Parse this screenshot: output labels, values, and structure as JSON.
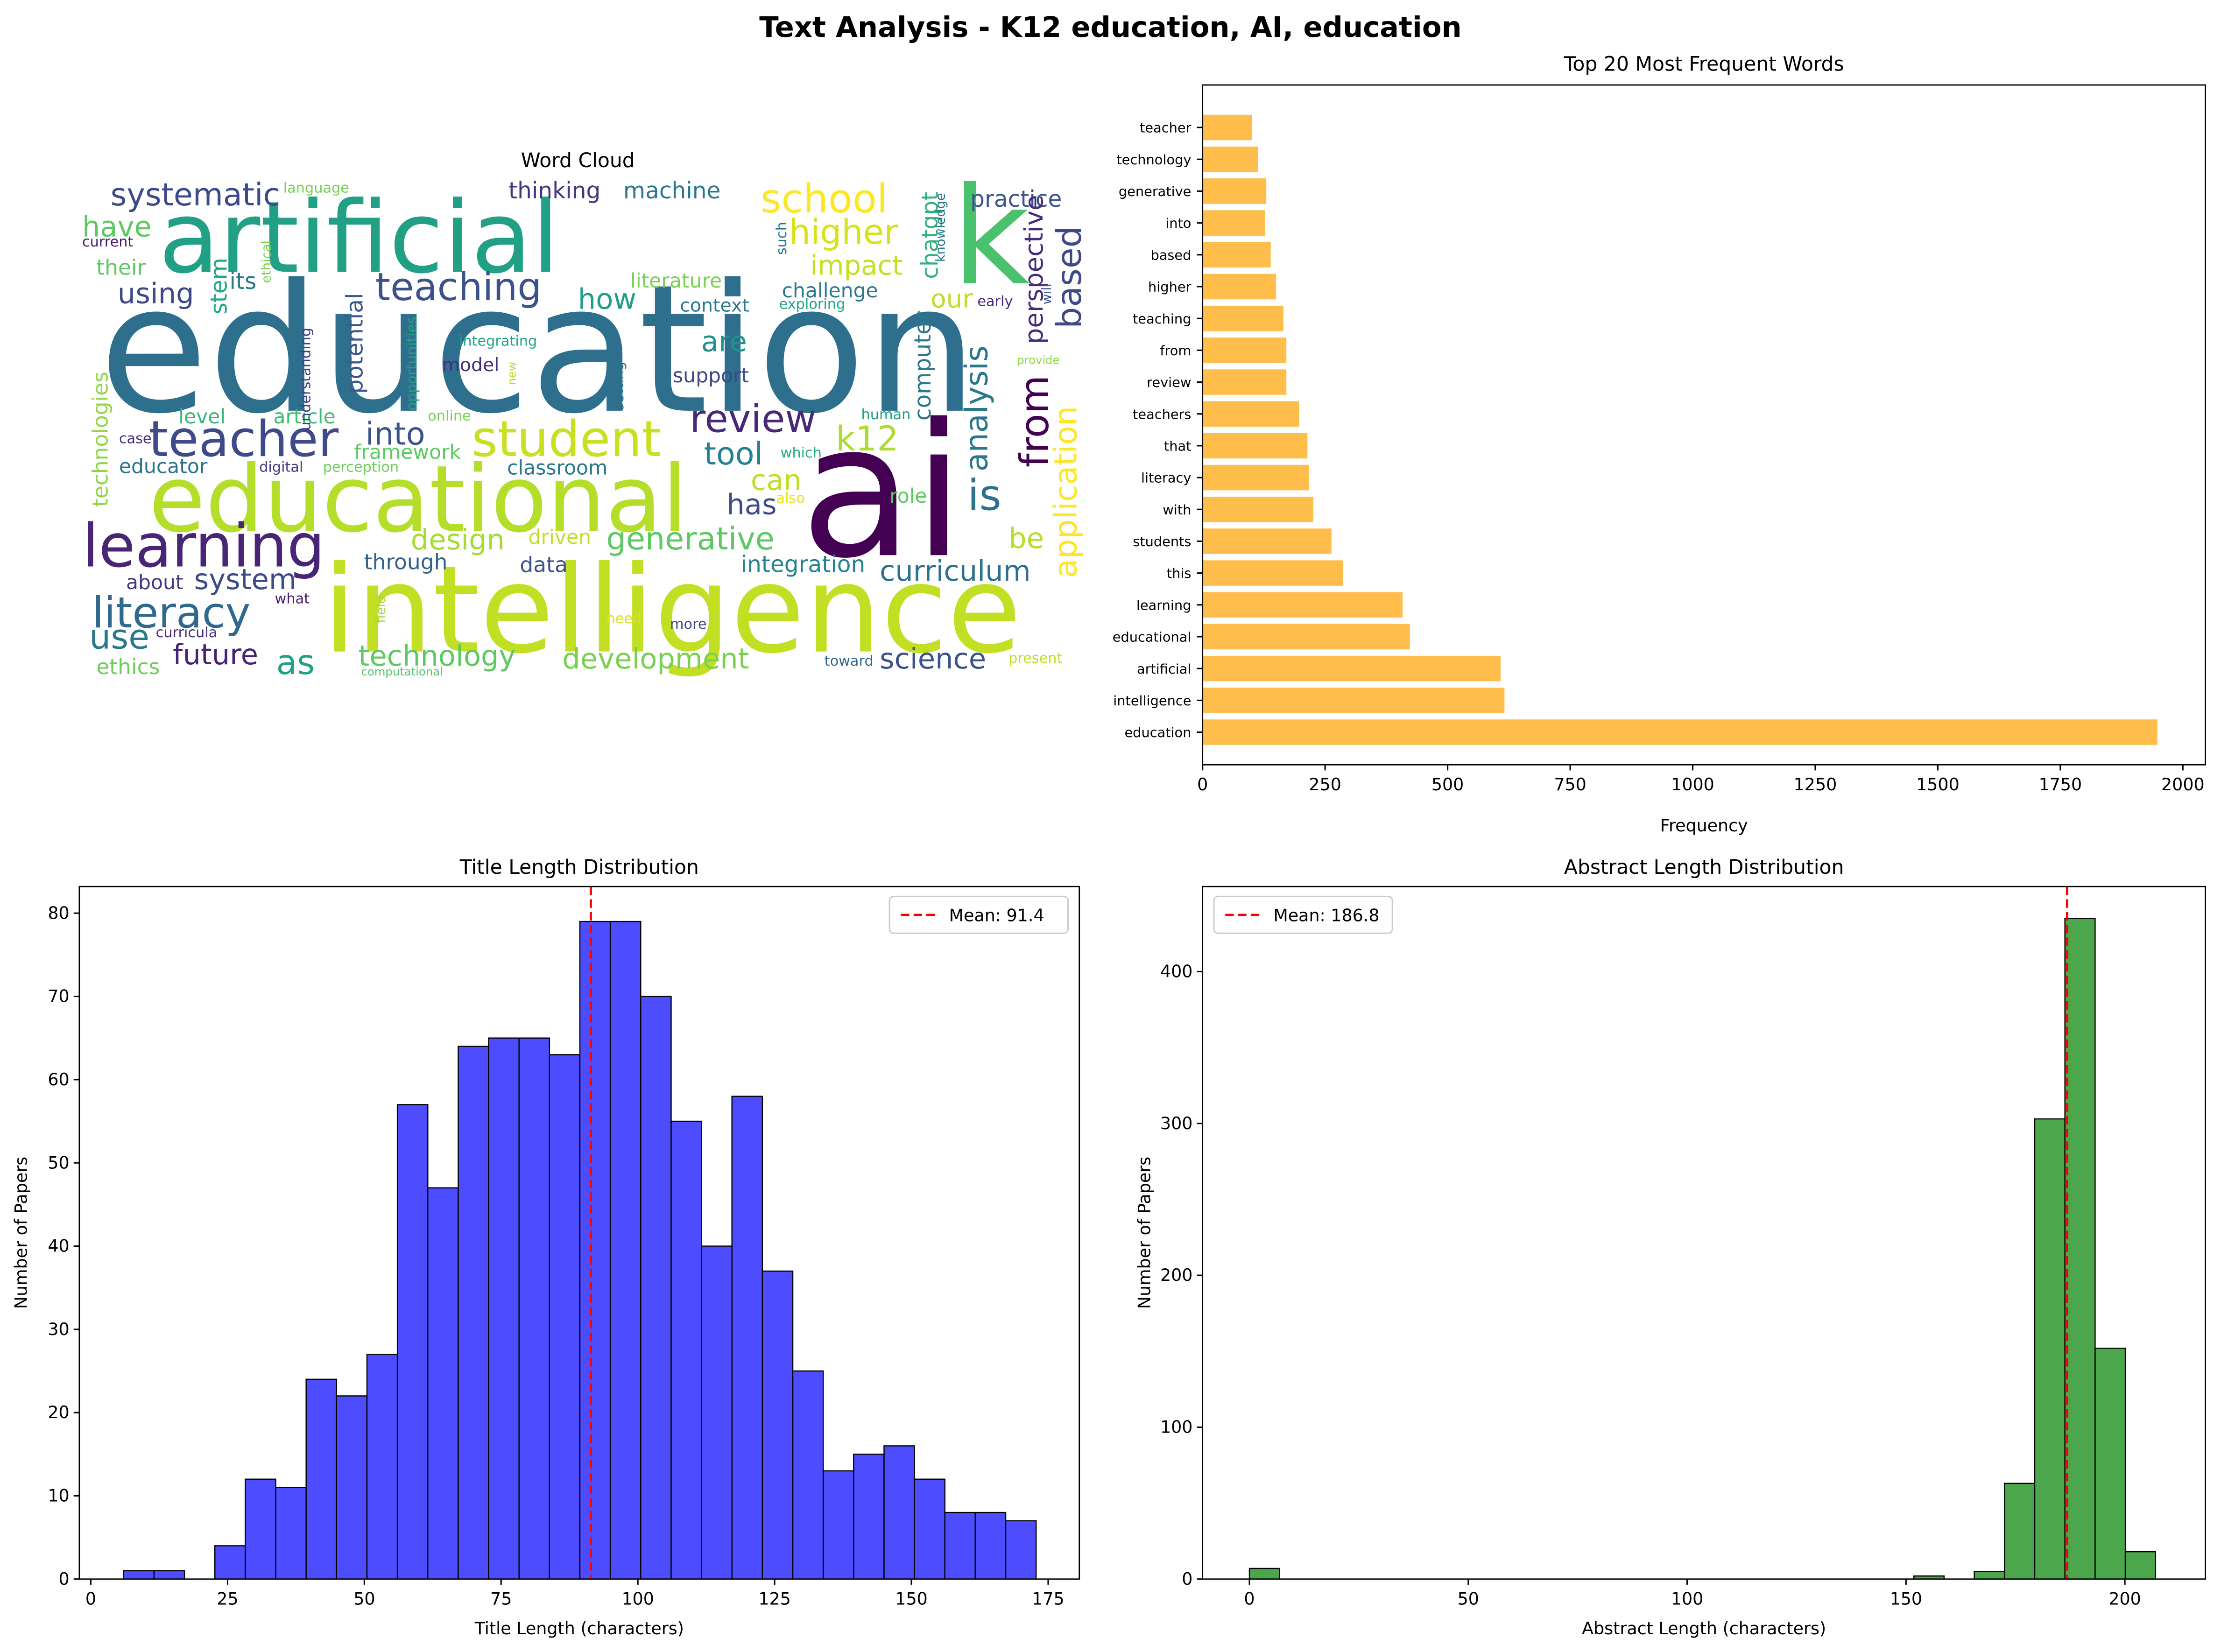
{
  "title": "Text Analysis - K12 education, AI, education",
  "chart_data": [
    {
      "type": "wordcloud",
      "title": "Word Cloud",
      "words": [
        "education",
        "artificial",
        "intelligence",
        "educational",
        "ai",
        "k",
        "learning",
        "teacher",
        "student",
        "school",
        "higher",
        "teaching",
        "review",
        "literacy",
        "systematic",
        "have",
        "using",
        "into",
        "k12",
        "tool",
        "is",
        "impact",
        "challenge",
        "our",
        "how",
        "are",
        "literature",
        "context",
        "support",
        "model",
        "can",
        "has",
        "role",
        "generative",
        "design",
        "driven",
        "be",
        "curriculum",
        "integration",
        "system",
        "data",
        "through",
        "about",
        "use",
        "future",
        "as",
        "technology",
        "development",
        "science",
        "ethics",
        "level",
        "article",
        "educator",
        "framework",
        "classroom",
        "digital",
        "perception",
        "case",
        "thinking",
        "machine",
        "practice",
        "language",
        "current",
        "their",
        "its",
        "exploring",
        "integrating",
        "early",
        "online",
        "human",
        "which",
        "also",
        "what",
        "curricula",
        "need",
        "more",
        "toward",
        "present",
        "computational",
        "provide",
        "based",
        "perspective",
        "analysis",
        "from",
        "application",
        "computer",
        "chatgpt",
        "stem",
        "technologies",
        "understanding",
        "potential",
        "opportunities",
        "setting",
        "new",
        "field",
        "knowledge",
        "will",
        "ethical",
        "such"
      ]
    },
    {
      "type": "barh",
      "title": "Top 20 Most Frequent Words",
      "xlabel": "Frequency",
      "categories": [
        "education",
        "intelligence",
        "artificial",
        "educational",
        "learning",
        "this",
        "students",
        "with",
        "literacy",
        "that",
        "teachers",
        "review",
        "from",
        "teaching",
        "higher",
        "based",
        "into",
        "generative",
        "technology",
        "teacher"
      ],
      "values": [
        1948,
        616,
        608,
        423,
        408,
        287,
        263,
        226,
        217,
        214,
        197,
        171,
        171,
        165,
        150,
        139,
        127,
        130,
        113,
        101
      ],
      "color": "#ffbe4c",
      "xlim": [
        0,
        2046
      ],
      "xticks": [
        0,
        250,
        500,
        750,
        1000,
        1250,
        1500,
        1750,
        2000
      ]
    },
    {
      "type": "histogram",
      "title": "Title Length Distribution",
      "xlabel": "Title Length (characters)",
      "ylabel": "Number of Papers",
      "bins": [
        6,
        11.56,
        17.12,
        22.68,
        28.24,
        33.8,
        39.36,
        44.92,
        50.48,
        56.04,
        61.6,
        67.16,
        72.72,
        78.28,
        83.84,
        89.4,
        94.96,
        100.52,
        106.08,
        111.64,
        117.2,
        122.76,
        128.32,
        133.88,
        139.44,
        145,
        150.56,
        156.12,
        161.68,
        167.24,
        172.8
      ],
      "values": [
        1,
        1,
        0,
        4,
        12,
        11,
        24,
        22,
        27,
        57,
        47,
        64,
        65,
        65,
        63,
        79,
        79,
        70,
        55,
        40,
        58,
        37,
        25,
        13,
        15,
        16,
        12,
        8,
        8,
        7
      ],
      "color": "#4d4dff",
      "mean": 91.4,
      "mean_label": "Mean: 91.4",
      "mean_color": "#ff0000",
      "legend": "upper right",
      "xlim": [
        -2.1,
        180.7
      ],
      "xticks": [
        0,
        25,
        50,
        75,
        100,
        125,
        150,
        175
      ],
      "ylim": [
        0,
        83.2
      ],
      "yticks": [
        0,
        10,
        20,
        30,
        40,
        50,
        60,
        70,
        80
      ]
    },
    {
      "type": "histogram",
      "title": "Abstract Length Distribution",
      "xlabel": "Abstract Length (characters)",
      "ylabel": "Number of Papers",
      "bins": [
        0,
        6.9,
        13.8,
        20.7,
        27.6,
        34.5,
        41.4,
        48.3,
        55.2,
        62.1,
        69,
        75.9,
        82.8,
        89.7,
        96.6,
        103.5,
        110.4,
        117.3,
        124.2,
        131.1,
        138,
        144.9,
        151.8,
        158.7,
        165.6,
        172.5,
        179.4,
        186.3,
        193.2,
        200.1,
        207
      ],
      "values": [
        7,
        0,
        0,
        0,
        0,
        0,
        0,
        0,
        0,
        0,
        0,
        0,
        0,
        0,
        0,
        0,
        0,
        0,
        0,
        0,
        0,
        0,
        2,
        0,
        5,
        63,
        303,
        435,
        152,
        18
      ],
      "color": "#4ca64c",
      "mean": 186.8,
      "mean_label": "Mean: 186.8",
      "mean_color": "#ff0000",
      "legend": "upper left",
      "xlim": [
        -10.7,
        218.4
      ],
      "xticks": [
        0,
        50,
        100,
        150,
        200
      ],
      "ylim": [
        0,
        456
      ],
      "yticks": [
        0,
        100,
        200,
        300,
        400
      ]
    }
  ]
}
